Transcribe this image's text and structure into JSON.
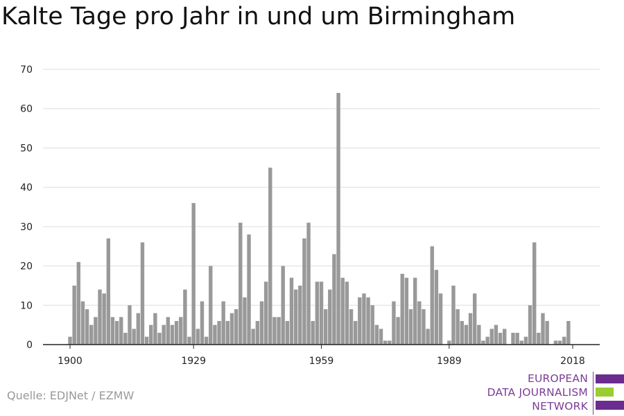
{
  "title": "Kalte Tage pro Jahr in und um Birmingham",
  "source": "Quelle: EDJNet / EZMW",
  "logo": {
    "lines": [
      "EUROPEAN",
      "DATA JOURNALISM",
      "NETWORK"
    ],
    "colors": [
      "#6b2c8f",
      "#9acd32",
      "#6b2c8f"
    ]
  },
  "chart_data": {
    "type": "bar",
    "x_start": 1900,
    "x_end": 2018,
    "x_ticks": [
      1900,
      1929,
      1959,
      1989,
      2018
    ],
    "ylim": [
      0,
      70
    ],
    "y_ticks": [
      0,
      10,
      20,
      30,
      40,
      50,
      60,
      70
    ],
    "grid": true,
    "bar_color": "#999999",
    "values": [
      2,
      15,
      21,
      11,
      9,
      5,
      7,
      14,
      13,
      27,
      7,
      6,
      7,
      3,
      10,
      4,
      8,
      26,
      2,
      5,
      8,
      3,
      5,
      7,
      5,
      6,
      7,
      14,
      2,
      36,
      4,
      11,
      2,
      20,
      5,
      6,
      11,
      6,
      8,
      9,
      31,
      12,
      28,
      4,
      6,
      11,
      16,
      45,
      7,
      7,
      20,
      6,
      17,
      14,
      15,
      27,
      31,
      6,
      16,
      16,
      9,
      14,
      23,
      64,
      17,
      16,
      9,
      6,
      12,
      13,
      12,
      10,
      5,
      4,
      1,
      1,
      11,
      7,
      18,
      17,
      9,
      17,
      11,
      9,
      4,
      25,
      19,
      13,
      0,
      1,
      15,
      9,
      6,
      5,
      8,
      13,
      5,
      1,
      2,
      4,
      5,
      3,
      4,
      0,
      3,
      3,
      1,
      2,
      10,
      26,
      3,
      8,
      6,
      0,
      1,
      1,
      2,
      6
    ]
  }
}
